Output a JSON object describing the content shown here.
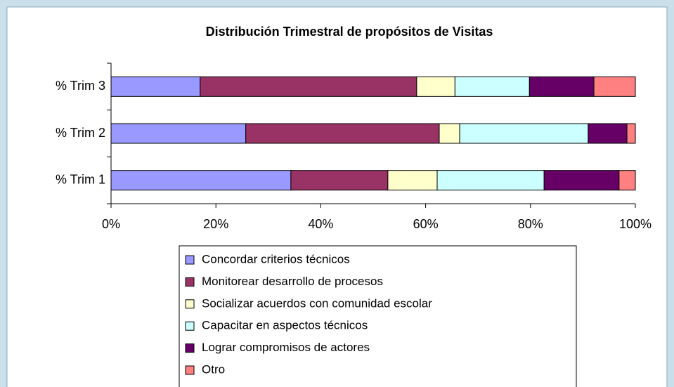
{
  "chart_data": {
    "type": "stacked-barh",
    "title": "Distribución Trimestral de propósitos de Visitas",
    "categories": [
      "% Trim 1",
      "% Trim 2",
      "% Trim 3"
    ],
    "series": [
      {
        "name": "Concordar criterios técnicos",
        "color": "#9999ff",
        "values": [
          34.3,
          25.7,
          17
        ]
      },
      {
        "name": "Monitorear desarrollo de procesos",
        "color": "#993366",
        "values": [
          18.5,
          36.9,
          41.3
        ]
      },
      {
        "name": "Socializar acuerdos con comunidad escolar",
        "color": "#ffffcc",
        "values": [
          9.4,
          3.9,
          7.3
        ]
      },
      {
        "name": "Capacitar en aspectos técnicos",
        "color": "#ccffff",
        "values": [
          20.4,
          24.5,
          14.2
        ]
      },
      {
        "name": "Lograr compromisos de actores",
        "color": "#660066",
        "values": [
          14.3,
          7.4,
          12.3
        ]
      },
      {
        "name": "Otro",
        "color": "#ff8080",
        "values": [
          3.1,
          1.6,
          7.9
        ]
      }
    ],
    "xlim": [
      0,
      100
    ],
    "xticks": [
      {
        "value": 0,
        "label": "0%"
      },
      {
        "value": 20,
        "label": "20%"
      },
      {
        "value": 40,
        "label": "40%"
      },
      {
        "value": 60,
        "label": "60%"
      },
      {
        "value": 80,
        "label": "80%"
      },
      {
        "value": 100,
        "label": "100%"
      }
    ],
    "legend": "bottom"
  }
}
